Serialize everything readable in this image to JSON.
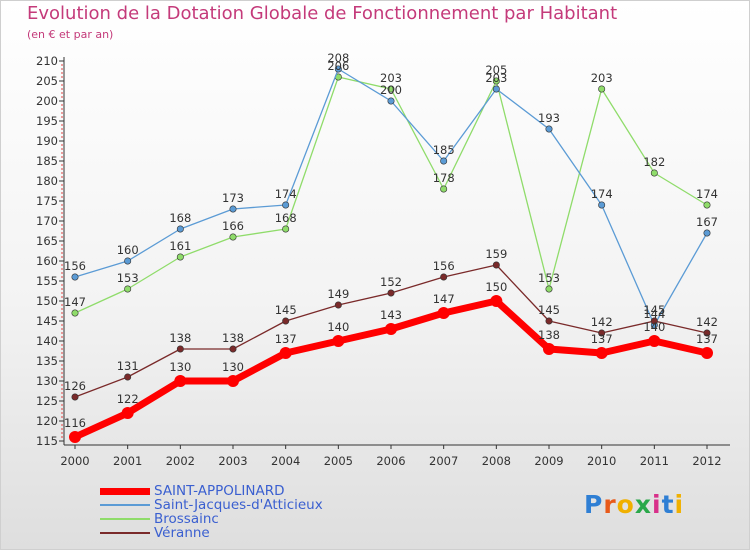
{
  "header": {
    "title": "Evolution de la Dotation Globale de Fonctionnement par Habitant",
    "subtitle": "(en € et par an)"
  },
  "logo": {
    "text": "Proxiti",
    "letters": [
      "P",
      "r",
      "o",
      "x",
      "i",
      "t",
      "i"
    ],
    "colors": [
      "#2f7fd4",
      "#e85a1a",
      "#f0b000",
      "#2aa84a",
      "#d8308a",
      "#2f7fd4",
      "#f0b000"
    ]
  },
  "chart_data": {
    "type": "line",
    "title": "Evolution de la Dotation Globale de Fonctionnement par Habitant",
    "subtitle": "(en € et par an)",
    "xlabel": "",
    "ylabel": "",
    "x": [
      "2000",
      "2001",
      "2002",
      "2003",
      "2004",
      "2005",
      "2006",
      "2007",
      "2008",
      "2009",
      "2010",
      "2011",
      "2012"
    ],
    "ylim": [
      115,
      210
    ],
    "yticks": [
      115,
      120,
      125,
      130,
      135,
      140,
      145,
      150,
      155,
      160,
      165,
      170,
      175,
      180,
      185,
      190,
      195,
      200,
      205,
      210
    ],
    "grid": false,
    "legend_position": "bottom-left",
    "series": [
      {
        "name": "SAINT-APPOLINARD",
        "color": "#ff0000",
        "values": [
          116,
          122,
          130,
          130,
          137,
          140,
          143,
          147,
          150,
          138,
          137,
          140,
          137
        ]
      },
      {
        "name": "Saint-Jacques-d'Atticieux",
        "color": "#5b9bd5",
        "values": [
          156,
          160,
          168,
          173,
          174,
          208,
          200,
          185,
          203,
          193,
          174,
          144,
          167
        ]
      },
      {
        "name": "Brossainc",
        "color": "#8fdc6a",
        "values": [
          147,
          153,
          161,
          166,
          168,
          206,
          203,
          178,
          205,
          153,
          203,
          182,
          174
        ]
      },
      {
        "name": "Véranne",
        "color": "#7a2a2a",
        "values": [
          126,
          131,
          138,
          138,
          145,
          149,
          152,
          156,
          159,
          145,
          142,
          145,
          142
        ]
      }
    ]
  }
}
